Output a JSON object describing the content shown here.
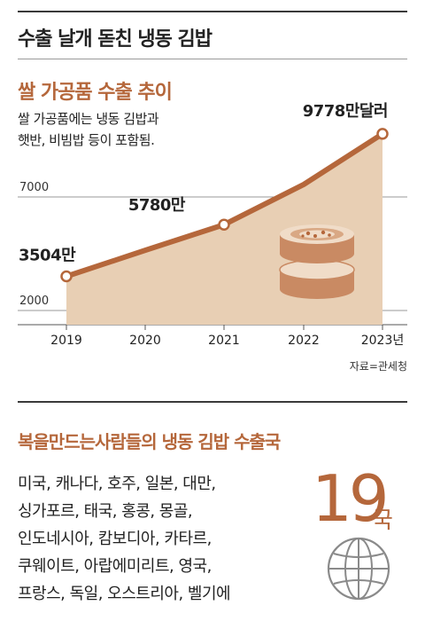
{
  "headline": "수출 날개 돋친 냉동 김밥",
  "chart_data": {
    "type": "area",
    "title": "쌀 가공품 수출 추이",
    "subtitle_lines": [
      "쌀 가공품에는 냉동 김밥과",
      "햇반, 비빔밥 등이 포함됨."
    ],
    "x": [
      "2019",
      "2020",
      "2021",
      "2022",
      "2023년"
    ],
    "values": [
      3504,
      4650,
      5780,
      7550,
      9778
    ],
    "data_labels": [
      "3504만",
      "",
      "5780만",
      "",
      "9778만달러"
    ],
    "y_ticks": [
      2000,
      7000
    ],
    "y_tick_labels": [
      "2000",
      "7000"
    ],
    "ylim": [
      2000,
      10200
    ],
    "grid": true,
    "colors": {
      "line": "#b5673b",
      "fill": "#e8cfb4",
      "marker_fill": "#ffffff"
    }
  },
  "source": "자료=관세청",
  "section2": {
    "title": "복을만드는사람들의 냉동 김밥 수출국",
    "country_lines": [
      "미국, 캐나다, 호주, 일본, 대만,",
      "싱가포르, 태국, 홍콩, 몽골,",
      "인도네시아, 캄보디아, 카타르,",
      "쿠웨이트, 아랍에미리트, 영국,",
      "프랑스, 독일, 오스트리아, 벨기에"
    ],
    "count_number": "19",
    "count_unit": "국",
    "icon": "globe-icon"
  }
}
